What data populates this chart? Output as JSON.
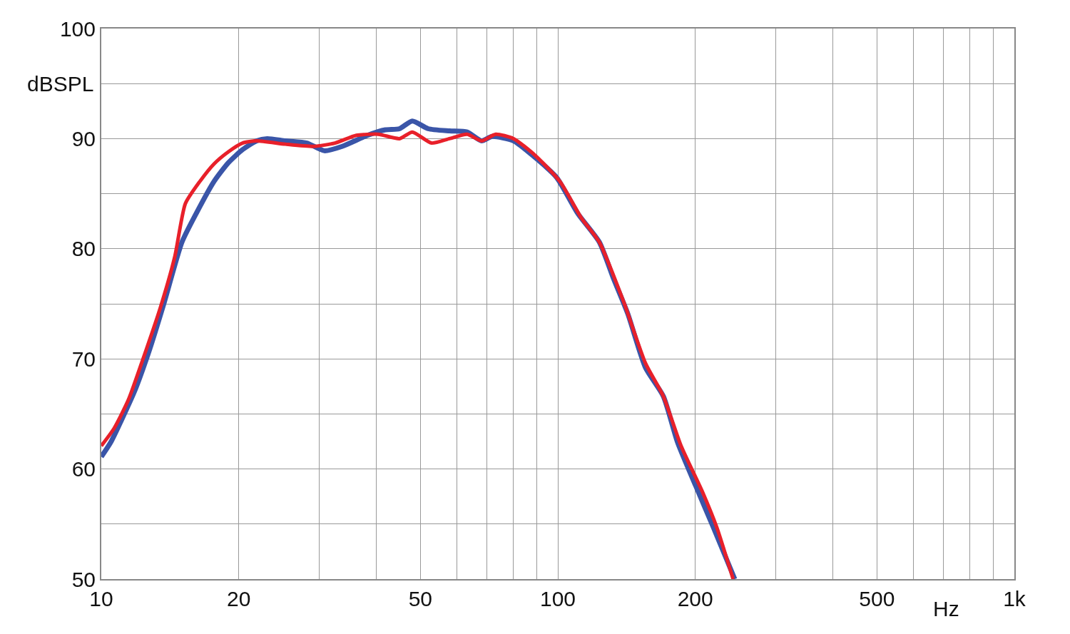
{
  "chart_data": {
    "type": "line",
    "xlabel": "Hz",
    "ylabel": "dBSPL",
    "log": "x",
    "grid": true,
    "line_style": "solid",
    "marker": "none",
    "xlim": [
      10,
      1000
    ],
    "ylim": [
      50,
      100
    ],
    "xticks": [
      10,
      20,
      {
        "value": 30,
        "label": null
      },
      {
        "value": 40,
        "label": null
      },
      50,
      {
        "value": 60,
        "label": null
      },
      {
        "value": 70,
        "label": null
      },
      {
        "value": 80,
        "label": null
      },
      {
        "value": 90,
        "label": null
      },
      100,
      200,
      {
        "value": 300,
        "label": null
      },
      {
        "value": 400,
        "label": null
      },
      500,
      {
        "value": 600,
        "label": null
      },
      {
        "value": 700,
        "label": null
      },
      {
        "value": 800,
        "label": null
      },
      {
        "value": 900,
        "label": null
      },
      {
        "value": 1000,
        "label": "1k"
      }
    ],
    "yticks": [
      50,
      {
        "value": 55,
        "label": null
      },
      60,
      {
        "value": 65,
        "label": null
      },
      70,
      {
        "value": 75,
        "label": null
      },
      80,
      {
        "value": 85,
        "label": null
      },
      90,
      {
        "value": 95,
        "label": null
      },
      100
    ],
    "series": [
      {
        "color": "#3a55a8",
        "x": [
          10,
          10.48,
          11.06,
          11.89,
          12.77,
          13.73,
          15.02,
          16.14,
          17.65,
          18.97,
          20.39,
          21.9,
          23.1,
          25.3,
          28.2,
          30.8,
          33.7,
          38.3,
          41.9,
          45.0,
          48.0,
          52.0,
          57.9,
          63.3,
          68.1,
          71.8,
          80.0,
          89.1,
          99.3,
          110.6,
          123.3,
          132.4,
          142.3,
          155.6,
          170.3,
          183.0,
          200.3,
          219.1,
          244.1
        ],
        "values": [
          61.1,
          62.4,
          64.4,
          67.3,
          70.9,
          75.1,
          80.6,
          83.2,
          86.1,
          87.8,
          89.0,
          89.8,
          90.0,
          89.8,
          89.6,
          88.9,
          89.3,
          90.3,
          90.8,
          90.9,
          91.6,
          90.9,
          90.7,
          90.6,
          89.8,
          90.2,
          89.8,
          88.3,
          86.5,
          83.2,
          80.6,
          77.3,
          74.1,
          69.2,
          66.6,
          62.4,
          58.5,
          54.7,
          50.0
        ]
      },
      {
        "color": "#e8202a",
        "x": [
          10,
          10.67,
          11.47,
          12.32,
          13.48,
          14.49,
          15.28,
          16.43,
          17.65,
          18.97,
          20.39,
          21.9,
          25.3,
          29.2,
          32.5,
          36.2,
          40.4,
          45.0,
          48.0,
          52.9,
          57.9,
          63.3,
          68.1,
          73.1,
          80.0,
          89.1,
          101.1,
          112.6,
          123.3,
          139.6,
          155.6,
          170.3,
          186.2,
          207.5,
          222.9,
          242.1
        ],
        "values": [
          62.1,
          63.7,
          66.3,
          69.9,
          74.7,
          79.3,
          84.1,
          86.1,
          87.7,
          88.8,
          89.6,
          89.8,
          89.5,
          89.3,
          89.6,
          90.3,
          90.4,
          90.0,
          90.6,
          89.6,
          90.0,
          90.4,
          89.8,
          90.4,
          90.0,
          88.5,
          86.1,
          82.8,
          80.6,
          75.1,
          69.6,
          66.6,
          62.1,
          57.9,
          54.7,
          50.0
        ]
      }
    ]
  }
}
